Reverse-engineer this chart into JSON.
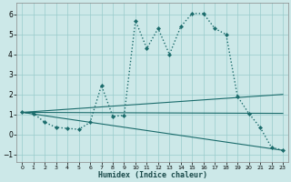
{
  "title": "",
  "xlabel": "Humidex (Indice chaleur)",
  "background_color": "#cce8e8",
  "grid_color": "#99cccc",
  "line_color": "#1a6b6b",
  "xlim": [
    -0.5,
    23.5
  ],
  "ylim": [
    -1.4,
    6.6
  ],
  "xticks": [
    0,
    1,
    2,
    3,
    4,
    5,
    6,
    7,
    8,
    9,
    10,
    11,
    12,
    13,
    14,
    15,
    16,
    17,
    18,
    19,
    20,
    21,
    22,
    23
  ],
  "yticks": [
    -1,
    0,
    1,
    2,
    3,
    4,
    5,
    6
  ],
  "main_x": [
    0,
    1,
    2,
    3,
    4,
    5,
    6,
    7,
    8,
    9,
    10,
    11,
    12,
    13,
    14,
    15,
    16,
    17,
    18,
    19,
    20,
    21,
    22,
    23
  ],
  "main_y": [
    1.1,
    1.05,
    0.6,
    0.35,
    0.3,
    0.25,
    0.6,
    2.45,
    0.9,
    0.95,
    5.7,
    4.3,
    5.3,
    4.0,
    5.4,
    6.05,
    6.05,
    5.3,
    5.0,
    1.9,
    1.05,
    0.35,
    -0.65,
    -0.8
  ],
  "ref_lines": [
    {
      "x": [
        0,
        23
      ],
      "y": [
        1.1,
        1.05
      ]
    },
    {
      "x": [
        0,
        23
      ],
      "y": [
        1.1,
        2.0
      ]
    },
    {
      "x": [
        0,
        23
      ],
      "y": [
        1.1,
        -0.8
      ]
    }
  ]
}
